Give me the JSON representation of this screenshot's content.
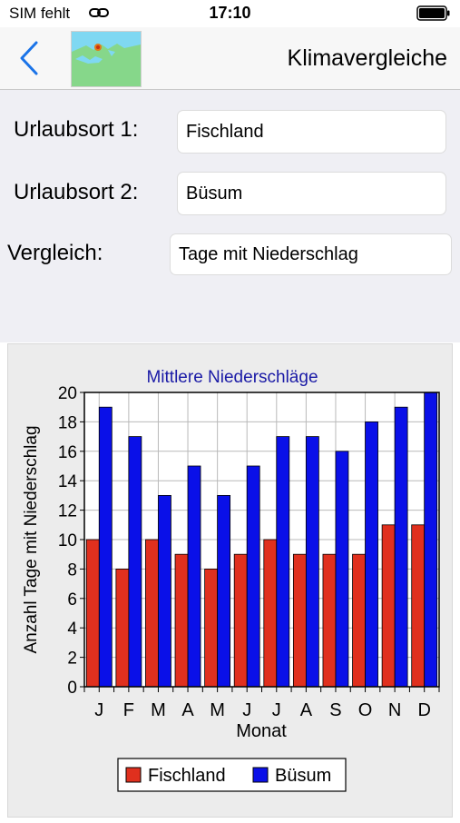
{
  "status_bar": {
    "carrier": "SIM fehlt",
    "time": "17:10"
  },
  "nav": {
    "title": "Klimavergleiche"
  },
  "form": {
    "location1": {
      "label": "Urlaubsort 1:",
      "value": "Fischland"
    },
    "location2": {
      "label": "Urlaubsort 2:",
      "value": "Büsum"
    },
    "comparison": {
      "label": "Vergleich:",
      "value": "Tage mit Niederschlag"
    }
  },
  "colors": {
    "series1": "#e0301e",
    "series2": "#0a10e8",
    "title": "#1a1aa6"
  },
  "chart_data": {
    "type": "bar",
    "title": "Mittlere Niederschläge",
    "xlabel": "Monat",
    "ylabel": "Anzahl Tage mit Niederschlag",
    "ylim": [
      0,
      20
    ],
    "yticks": [
      0,
      2,
      4,
      6,
      8,
      10,
      12,
      14,
      16,
      18,
      20
    ],
    "grid": true,
    "legend_position": "bottom",
    "categories": [
      "J",
      "F",
      "M",
      "A",
      "M",
      "J",
      "J",
      "A",
      "S",
      "O",
      "N",
      "D"
    ],
    "series": [
      {
        "name": "Fischland",
        "values": [
          10,
          8,
          10,
          9,
          8,
          9,
          10,
          9,
          9,
          9,
          11,
          11
        ]
      },
      {
        "name": "Büsum",
        "values": [
          19,
          17,
          13,
          15,
          13,
          15,
          17,
          17,
          16,
          18,
          19,
          20
        ]
      }
    ]
  }
}
